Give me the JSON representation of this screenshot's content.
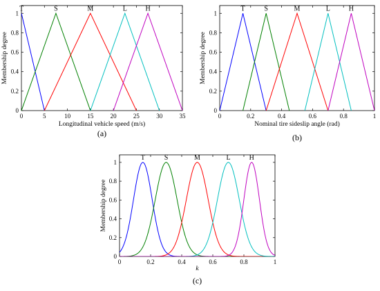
{
  "colors": {
    "T": "#0000ff",
    "S": "#008000",
    "M": "#ff0000",
    "L": "#00bfbf",
    "H": "#bf00bf"
  },
  "chart_data": [
    {
      "type": "line",
      "panel_label": "(a)",
      "xlabel": "Longitudinal vehicle speed (m/s)",
      "ylabel": "Membership degree",
      "xlim": [
        0,
        35
      ],
      "ylim": [
        0,
        1.08
      ],
      "xticks": [
        "0",
        "5",
        "10",
        "15",
        "20",
        "25",
        "30",
        "35"
      ],
      "yticks": [
        "0",
        "0.2",
        "0.4",
        "0.6",
        "0.8",
        "1"
      ],
      "shape": "triangular",
      "series": [
        {
          "name": "T",
          "x": [
            0,
            0,
            5
          ],
          "y": [
            1,
            1,
            0
          ],
          "points": [
            [
              0,
              1
            ],
            [
              5,
              0
            ]
          ]
        },
        {
          "name": "S",
          "points": [
            [
              0,
              0
            ],
            [
              7.5,
              1
            ],
            [
              15,
              0
            ]
          ]
        },
        {
          "name": "M",
          "points": [
            [
              5,
              0
            ],
            [
              15,
              1
            ],
            [
              25,
              0
            ]
          ]
        },
        {
          "name": "L",
          "points": [
            [
              15,
              0
            ],
            [
              22.5,
              1
            ],
            [
              30,
              0
            ]
          ]
        },
        {
          "name": "H",
          "points": [
            [
              20,
              0
            ],
            [
              27.5,
              1
            ],
            [
              35,
              0
            ]
          ]
        }
      ],
      "label_x": [
        0,
        7.5,
        15,
        22.5,
        27.5
      ]
    },
    {
      "type": "line",
      "panel_label": "(b)",
      "xlabel": "Nominal tire sideslip angle (rad)",
      "ylabel": "Membership degree",
      "xlim": [
        0,
        1
      ],
      "ylim": [
        0,
        1.08
      ],
      "xticks": [
        "0",
        "0.2",
        "0.4",
        "0.6",
        "0.8",
        "1"
      ],
      "yticks": [
        "0",
        "0.2",
        "0.4",
        "0.6",
        "0.8",
        "1"
      ],
      "shape": "triangular",
      "series": [
        {
          "name": "T",
          "points": [
            [
              0,
              0
            ],
            [
              0.15,
              1
            ],
            [
              0.3,
              0
            ]
          ]
        },
        {
          "name": "S",
          "points": [
            [
              0.15,
              0
            ],
            [
              0.3,
              1
            ],
            [
              0.45,
              0
            ]
          ]
        },
        {
          "name": "M",
          "points": [
            [
              0.3,
              0
            ],
            [
              0.5,
              1
            ],
            [
              0.7,
              0
            ]
          ]
        },
        {
          "name": "L",
          "points": [
            [
              0.55,
              0
            ],
            [
              0.7,
              1
            ],
            [
              0.85,
              0
            ]
          ]
        },
        {
          "name": "H",
          "points": [
            [
              0.7,
              0
            ],
            [
              0.85,
              1
            ],
            [
              1.0,
              0
            ]
          ]
        }
      ],
      "label_x": [
        0.15,
        0.3,
        0.5,
        0.7,
        0.85
      ]
    },
    {
      "type": "line",
      "panel_label": "(c)",
      "xlabel": "k",
      "ylabel": "Membership degree",
      "xlim": [
        0,
        1
      ],
      "ylim": [
        0,
        1.08
      ],
      "xticks": [
        "0",
        "0.2",
        "0.4",
        "0.6",
        "0.8",
        "1"
      ],
      "yticks": [
        "0",
        "0.2",
        "0.4",
        "0.6",
        "0.8",
        "1"
      ],
      "shape": "gaussian",
      "series": [
        {
          "name": "T",
          "center": 0.15,
          "sigma": 0.06
        },
        {
          "name": "S",
          "center": 0.3,
          "sigma": 0.07
        },
        {
          "name": "M",
          "center": 0.5,
          "sigma": 0.07
        },
        {
          "name": "L",
          "center": 0.7,
          "sigma": 0.07
        },
        {
          "name": "H",
          "center": 0.85,
          "sigma": 0.05
        }
      ],
      "label_x": [
        0.15,
        0.3,
        0.5,
        0.7,
        0.85
      ]
    }
  ]
}
